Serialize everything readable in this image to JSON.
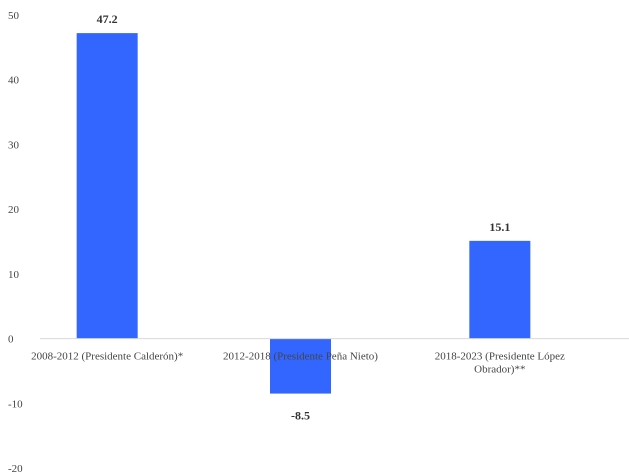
{
  "chart_data": {
    "type": "bar",
    "categories": [
      [
        "2008-2012 (Presidente Calderón)*"
      ],
      [
        "2012-2018 (Presidente Peña Nieto)"
      ],
      [
        "2018-2023 (Presidente López",
        "Obrador)**"
      ]
    ],
    "values": [
      47.2,
      -8.5,
      15.1
    ],
    "data_labels": [
      "47.2",
      "-8.5",
      "15.1"
    ],
    "y_ticks": [
      "50",
      "40",
      "30",
      "20",
      "10",
      "0",
      "-10",
      "-20"
    ],
    "ylim": [
      -20,
      50
    ],
    "grid": false,
    "legend": "none",
    "bar_color": "#3366ff"
  }
}
